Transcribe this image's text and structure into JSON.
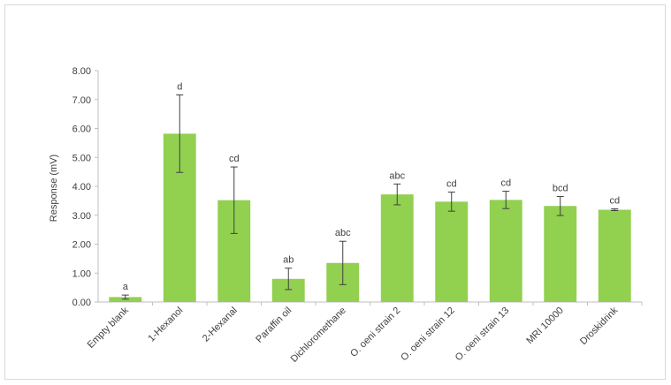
{
  "chart_data": {
    "type": "bar",
    "ylabel": "Response (mV)",
    "xlabel": "",
    "ylim": [
      0,
      8
    ],
    "yticks": [
      "0.00",
      "1.00",
      "2.00",
      "3.00",
      "4.00",
      "5.00",
      "6.00",
      "7.00",
      "8.00"
    ],
    "grid": false,
    "bar_color": "#92d050",
    "categories": [
      "Empty blank",
      "1-Hexanol",
      "2-Hexanal",
      "Paraffin oil",
      "Dichloromethane",
      "O. oeni strain 2",
      "O. oeni strain 12",
      "O. oeni strain 13",
      "MRI 10000",
      "Droskidrink"
    ],
    "values": [
      0.17,
      5.82,
      3.52,
      0.8,
      1.35,
      3.72,
      3.47,
      3.53,
      3.32,
      3.19
    ],
    "errors": [
      0.07,
      1.34,
      1.15,
      0.37,
      0.75,
      0.36,
      0.33,
      0.3,
      0.33,
      0.03
    ],
    "significance_letters": [
      "a",
      "d",
      "cd",
      "ab",
      "abc",
      "abc",
      "cd",
      "cd",
      "bcd",
      "cd"
    ]
  }
}
